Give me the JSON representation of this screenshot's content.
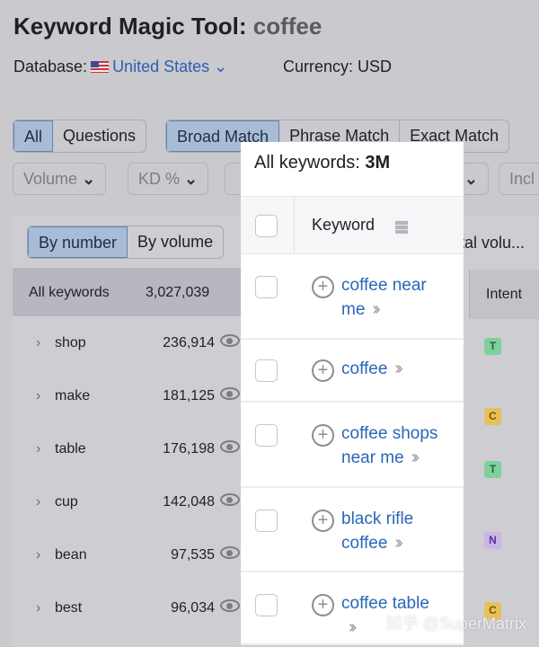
{
  "header": {
    "title": "Keyword Magic Tool:",
    "query": "coffee",
    "database_label": "Database:",
    "database_value": "United States",
    "currency": "Currency: USD"
  },
  "tabs": {
    "type": [
      "All",
      "Questions"
    ],
    "match": [
      "Broad Match",
      "Phrase Match",
      "Exact Match"
    ]
  },
  "filters": [
    "Volume",
    "KD %",
    "Incl"
  ],
  "view_toggle": [
    "By number",
    "By volume"
  ],
  "total_volume_label": "tal volu...",
  "groups": {
    "header_label": "All keywords",
    "header_count": "3,027,039",
    "items": [
      {
        "label": "shop",
        "count": "236,914"
      },
      {
        "label": "make",
        "count": "181,125"
      },
      {
        "label": "table",
        "count": "176,198"
      },
      {
        "label": "cup",
        "count": "142,048"
      },
      {
        "label": "bean",
        "count": "97,535"
      },
      {
        "label": "best",
        "count": "96,034"
      }
    ]
  },
  "popup": {
    "title": "All keywords:",
    "count": "3M",
    "column_keyword": "Keyword",
    "rows": [
      {
        "l1": "coffee near",
        "l2": "me"
      },
      {
        "l1": "coffee",
        "l2": ""
      },
      {
        "l1": "coffee shops",
        "l2": "near me"
      },
      {
        "l1": "black rifle",
        "l2": "coffee"
      },
      {
        "l1": "coffee table",
        "l2": ""
      }
    ]
  },
  "intent": {
    "header": "Intent",
    "badges": [
      {
        "v": "T",
        "bg": "#7fcf9f",
        "fg": "#1c6b3e"
      },
      {
        "v": "C",
        "bg": "#e6c15a",
        "fg": "#7a5210"
      },
      {
        "v": "T",
        "bg": "#7fcf9f",
        "fg": "#1c6b3e"
      },
      {
        "v": "N",
        "bg": "#c9b6e2",
        "fg": "#5a2fa0"
      },
      {
        "v": "C",
        "bg": "#e6c15a",
        "fg": "#7a5210"
      }
    ]
  },
  "watermark": "知乎 @SuperMatrix"
}
